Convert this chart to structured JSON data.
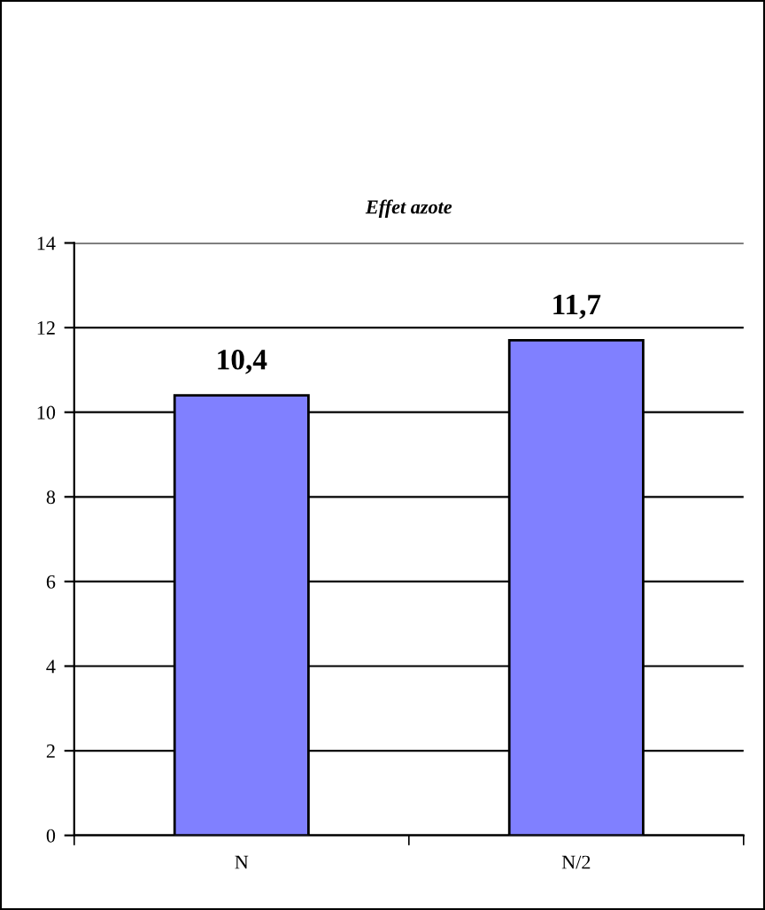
{
  "chart_data": {
    "type": "bar",
    "title": "Effet azote",
    "categories": [
      "N",
      "N/2"
    ],
    "values": [
      10.4,
      11.7
    ],
    "value_labels": [
      "10,4",
      "11,7"
    ],
    "color": "#8080ff",
    "ylim": [
      0,
      14
    ],
    "yticks": [
      0,
      2,
      4,
      6,
      8,
      10,
      12,
      14
    ],
    "grid": "y",
    "legend": false
  }
}
